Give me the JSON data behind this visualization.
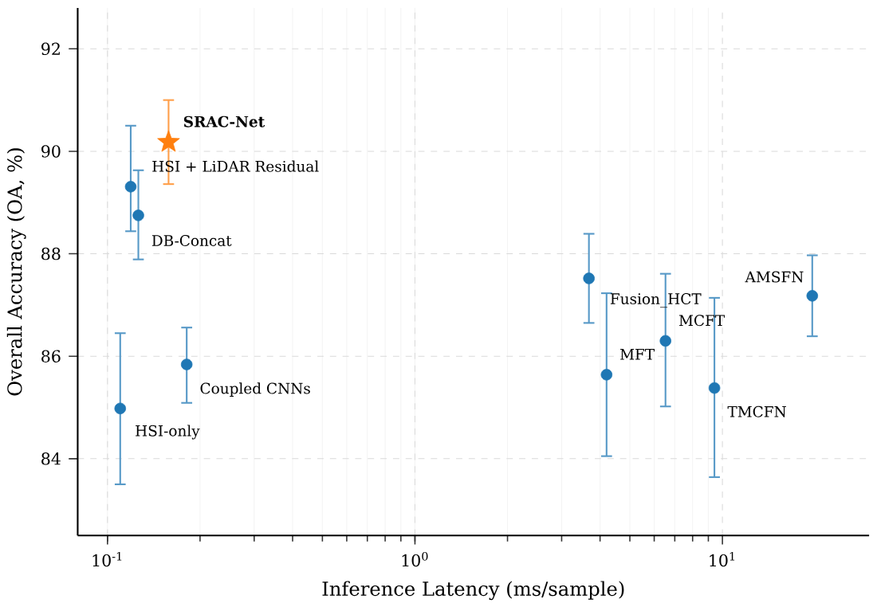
{
  "chart_data": {
    "type": "scatter",
    "xlabel": "Inference Latency (ms/sample)",
    "ylabel": "Overall Accuracy (OA, %)",
    "log": "x",
    "grid": true,
    "xlim": [
      0.08,
      30
    ],
    "ylim": [
      82.5,
      92.8
    ],
    "xticks": [
      {
        "value": 0.1,
        "label": "10$^{-1}$"
      },
      {
        "value": 1,
        "label": "10$^{0}$"
      },
      {
        "value": 10,
        "label": "10$^{1}$"
      }
    ],
    "yticks": [
      84,
      86,
      88,
      90,
      92
    ],
    "series": [
      {
        "color": "#1f77b4",
        "marker": "circle",
        "x": [
          0.11,
          0.119,
          0.126,
          0.181,
          3.68,
          4.2,
          6.53,
          9.42,
          19.6
        ],
        "values": [
          84.98,
          89.31,
          88.75,
          85.84,
          87.52,
          85.64,
          86.3,
          85.38,
          87.18
        ],
        "errors": [
          [
            83.5,
            86.45
          ],
          [
            88.44,
            90.5
          ],
          [
            87.89,
            89.63
          ],
          [
            85.09,
            86.56
          ],
          [
            86.65,
            88.39
          ],
          [
            84.05,
            87.23
          ],
          [
            85.02,
            87.61
          ],
          [
            83.64,
            87.14
          ],
          [
            86.39,
            87.97
          ]
        ]
      },
      {
        "color": "#ff7f0e",
        "marker": "star",
        "x": [
          0.158
        ],
        "values": [
          90.18
        ],
        "errors": [
          [
            89.36,
            91.0
          ]
        ]
      }
    ],
    "annotations": [
      {
        "text": "HSI-only",
        "x": 0.11,
        "y": 84.98
      },
      {
        "text": "HSI + LiDAR Residual",
        "x": 0.119,
        "y": 89.31
      },
      {
        "text": "DB-Concat",
        "x": 0.126,
        "y": 88.75
      },
      {
        "text": "Coupled CNNs",
        "x": 0.181,
        "y": 85.84
      },
      {
        "text": "Fusion_HCT",
        "x": 3.68,
        "y": 87.52
      },
      {
        "text": "MFT",
        "x": 4.2,
        "y": 85.64
      },
      {
        "text": "MCFT",
        "x": 6.53,
        "y": 86.3
      },
      {
        "text": "TMCFN",
        "x": 9.42,
        "y": 85.38
      },
      {
        "text": "AMSFN",
        "x": 19.6,
        "y": 87.18
      },
      {
        "text": "**SRAC-Net**",
        "x": 0.158,
        "y": 90.18
      }
    ]
  }
}
